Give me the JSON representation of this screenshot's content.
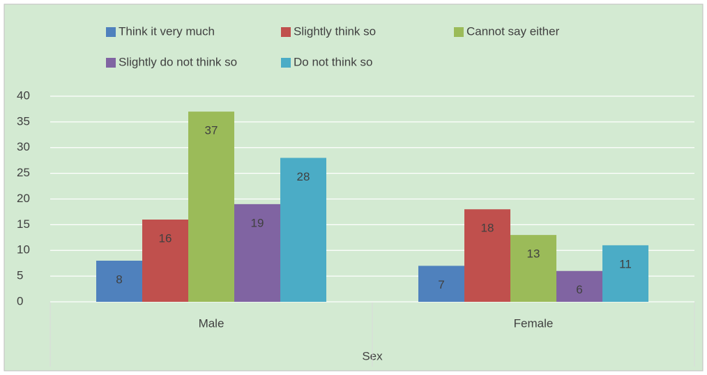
{
  "chart_data": {
    "type": "bar",
    "categories": [
      "Male",
      "Female"
    ],
    "x_label": "Sex",
    "series": [
      {
        "name": "Think it very much",
        "color": "#4f81bd",
        "values": [
          8,
          7
        ]
      },
      {
        "name": "Slightly think so",
        "color": "#c0504d",
        "values": [
          16,
          18
        ]
      },
      {
        "name": "Cannot say either",
        "color": "#9bbb59",
        "values": [
          37,
          13
        ]
      },
      {
        "name": "Slightly do not think so",
        "color": "#8064a2",
        "values": [
          19,
          6
        ]
      },
      {
        "name": "Do not think so",
        "color": "#4bacc6",
        "values": [
          28,
          11
        ]
      }
    ],
    "ylim": [
      0,
      40
    ],
    "yticks": [
      0,
      5,
      10,
      15,
      20,
      25,
      30,
      35,
      40
    ],
    "grid": true,
    "legend": "top",
    "data_labels": true,
    "background": "#d3ead2"
  }
}
